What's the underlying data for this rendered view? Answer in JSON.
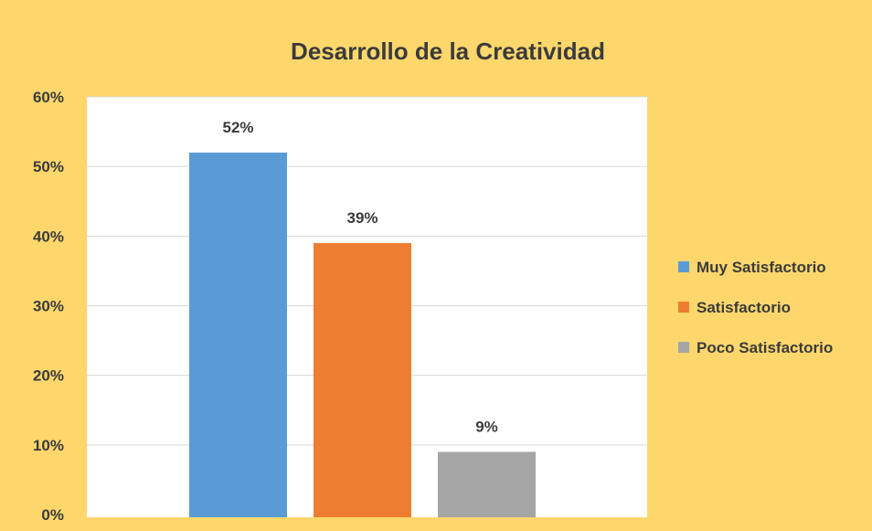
{
  "chart_data": {
    "type": "bar",
    "title": "Desarrollo de la Creatividad",
    "xlabel": "",
    "ylabel": "",
    "ylim": [
      0,
      60
    ],
    "yticks": [
      "0%",
      "10%",
      "20%",
      "30%",
      "40%",
      "50%",
      "60%"
    ],
    "grid": true,
    "legend_position": "right",
    "series": [
      {
        "name": "Muy Satisfactorio",
        "value": 52,
        "label": "52%",
        "color": "#5b9bd5"
      },
      {
        "name": "Satisfactorio",
        "value": 39,
        "label": "39%",
        "color": "#ed7d31"
      },
      {
        "name": "Poco Satisfactorio",
        "value": 9,
        "label": "9%",
        "color": "#a5a5a5"
      }
    ]
  },
  "colors": {
    "chart_background": "#fdd76c",
    "plot_background": "#ffffff",
    "gridline": "#d9d9d9"
  }
}
